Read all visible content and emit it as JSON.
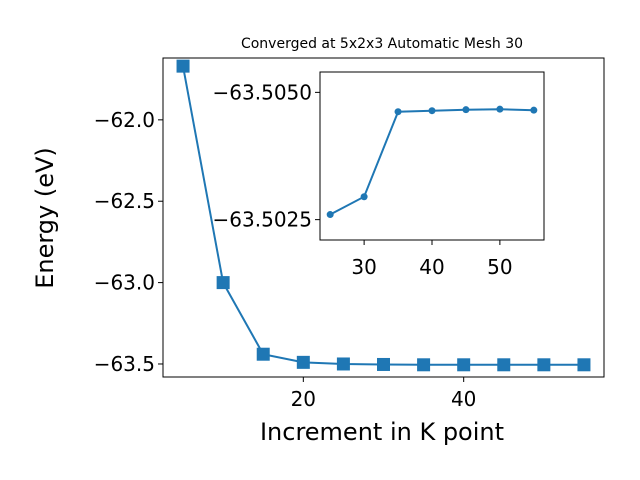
{
  "chart_data": [
    {
      "type": "line",
      "title": "Converged at 5x2x3 Automatic Mesh 30",
      "xlabel": "Increment in K point",
      "ylabel": "Energy (eV)",
      "xlim": [
        2.5,
        57.5
      ],
      "ylim": [
        -63.58,
        -61.62
      ],
      "x_ticks": [
        20,
        40
      ],
      "y_ticks": [
        -62.0,
        -62.5,
        -63.0,
        -63.5
      ],
      "x_tick_labels": [
        "20",
        "40"
      ],
      "y_tick_labels": [
        "−62.0",
        "−62.5",
        "−63.0",
        "−63.5"
      ],
      "grid": false,
      "marker": "square",
      "color": "#1f77b4",
      "series": [
        {
          "x": [
            5,
            10,
            15,
            20,
            25,
            30,
            35,
            40,
            45,
            50,
            55
          ],
          "y": [
            -61.67,
            -63.0,
            -63.44,
            -63.49,
            -63.5,
            -63.503,
            -63.505,
            -63.505,
            -63.505,
            -63.505,
            -63.505
          ]
        }
      ]
    },
    {
      "type": "line",
      "title": "",
      "xlabel": "",
      "ylabel": "",
      "inset": true,
      "xlim": [
        23.5,
        56.5
      ],
      "ylim": [
        -63.5021,
        -63.5054
      ],
      "x_ticks": [
        30,
        40,
        50
      ],
      "y_ticks": [
        -63.505,
        -63.5025
      ],
      "x_tick_labels": [
        "30",
        "40",
        "50"
      ],
      "y_tick_labels": [
        "−63.5050",
        "−63.5025"
      ],
      "grid": false,
      "marker": "circle",
      "color": "#1f77b4",
      "series": [
        {
          "x": [
            25,
            30,
            35,
            40,
            45,
            50,
            55
          ],
          "y": [
            -63.5026,
            -63.50295,
            -63.50462,
            -63.50464,
            -63.50466,
            -63.50467,
            -63.50465
          ]
        }
      ]
    }
  ]
}
